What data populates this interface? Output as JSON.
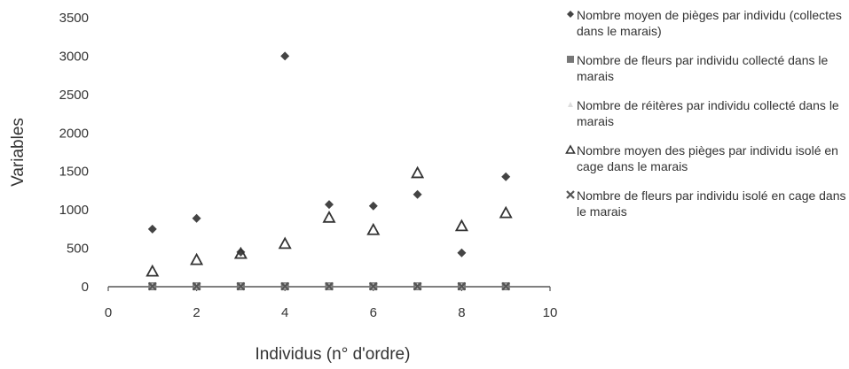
{
  "chart_data": {
    "type": "scatter",
    "xlabel": "Individus (n° d'ordre)",
    "ylabel": "Variables",
    "xlim": [
      0,
      10
    ],
    "ylim": [
      0,
      3500
    ],
    "xticks": [
      "0",
      "2",
      "4",
      "6",
      "8",
      "10"
    ],
    "yticks": [
      "0",
      "500",
      "1000",
      "1500",
      "2000",
      "2500",
      "3000",
      "3500"
    ],
    "legend_position": "right",
    "series": [
      {
        "name": "Nombre moyen de pièges par individu (collectes dans le marais)",
        "marker": "diamond",
        "color": "#444444",
        "points": [
          [
            1,
            750
          ],
          [
            2,
            890
          ],
          [
            3,
            450
          ],
          [
            4,
            3000
          ],
          [
            5,
            1070
          ],
          [
            6,
            1050
          ],
          [
            7,
            1200
          ],
          [
            8,
            440
          ],
          [
            9,
            1430
          ]
        ]
      },
      {
        "name": "Nombre de fleurs par individu collecté dans le marais",
        "marker": "square",
        "color": "#777777",
        "points": [
          [
            1,
            5
          ],
          [
            2,
            5
          ],
          [
            3,
            5
          ],
          [
            4,
            5
          ],
          [
            5,
            5
          ],
          [
            6,
            5
          ],
          [
            7,
            5
          ],
          [
            8,
            5
          ],
          [
            9,
            5
          ]
        ]
      },
      {
        "name": "Nombre de réitères par individu collecté dans le marais",
        "marker": "triangle-light",
        "color": "#cccccc",
        "points": [
          [
            1,
            5
          ],
          [
            2,
            5
          ],
          [
            3,
            5
          ],
          [
            4,
            5
          ],
          [
            5,
            5
          ],
          [
            6,
            5
          ],
          [
            7,
            5
          ],
          [
            8,
            5
          ],
          [
            9,
            5
          ]
        ]
      },
      {
        "name": "Nombre moyen des pièges par individu isolé en cage dans le marais",
        "marker": "triangle-open",
        "color": "#333333",
        "points": [
          [
            1,
            200
          ],
          [
            2,
            350
          ],
          [
            3,
            430
          ],
          [
            4,
            560
          ],
          [
            5,
            900
          ],
          [
            6,
            740
          ],
          [
            7,
            1480
          ],
          [
            8,
            790
          ],
          [
            9,
            960
          ]
        ]
      },
      {
        "name": "Nombre de fleurs par individu isolé en cage dans le marais",
        "marker": "x",
        "color": "#555555",
        "points": [
          [
            1,
            5
          ],
          [
            2,
            5
          ],
          [
            3,
            5
          ],
          [
            4,
            5
          ],
          [
            5,
            5
          ],
          [
            6,
            5
          ],
          [
            7,
            5
          ],
          [
            8,
            5
          ],
          [
            9,
            5
          ]
        ]
      }
    ]
  }
}
